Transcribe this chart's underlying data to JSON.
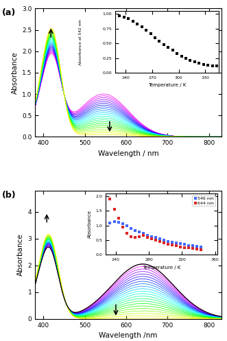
{
  "panel_a": {
    "label": "(a)",
    "ylabel": "Absorbance",
    "xlabel": "Wavelength / nm",
    "xlim": [
      380,
      830
    ],
    "ylim": [
      0.0,
      3.0
    ],
    "yticks": [
      0.0,
      0.5,
      1.0,
      1.5,
      2.0,
      2.5,
      3.0
    ],
    "xticks": [
      400,
      500,
      600,
      700,
      800
    ],
    "n_spectra": 23,
    "inset": {
      "xlim": [
        228,
        345
      ],
      "ylim": [
        0.0,
        1.05
      ],
      "yticks": [
        0.0,
        0.25,
        0.5,
        0.75,
        1.0
      ],
      "xticks": [
        240,
        270,
        300,
        330
      ],
      "xlabel": "Temperature / K",
      "ylabel": "Absorbance at 542 nm",
      "temps": [
        233,
        238,
        243,
        248,
        253,
        258,
        263,
        268,
        273,
        278,
        283,
        288,
        293,
        298,
        303,
        308,
        313,
        318,
        323,
        328,
        333,
        338,
        343
      ],
      "abs_vals": [
        0.97,
        0.95,
        0.92,
        0.88,
        0.83,
        0.78,
        0.72,
        0.66,
        0.6,
        0.54,
        0.48,
        0.43,
        0.38,
        0.33,
        0.28,
        0.24,
        0.21,
        0.18,
        0.16,
        0.14,
        0.13,
        0.12,
        0.12
      ]
    }
  },
  "panel_b": {
    "label": "(b)",
    "ylabel": "Absorbance",
    "xlabel": "Wavelength /nm",
    "xlim": [
      380,
      830
    ],
    "ylim": [
      0.0,
      4.8
    ],
    "yticks": [
      0,
      1,
      2,
      3,
      4
    ],
    "xticks": [
      400,
      500,
      600,
      700,
      800
    ],
    "n_spectra": 23,
    "inset": {
      "xlim": [
        228,
        363
      ],
      "ylim": [
        0.0,
        2.1
      ],
      "yticks": [
        0.0,
        0.5,
        1.0,
        1.5,
        2.0
      ],
      "xticks": [
        240,
        280,
        320,
        360
      ],
      "xlabel": "Temperature / K",
      "ylabel": "Absorbance",
      "temps": [
        233,
        238,
        243,
        248,
        253,
        258,
        263,
        268,
        273,
        278,
        283,
        288,
        293,
        298,
        303,
        308,
        313,
        318,
        323,
        328,
        333,
        338,
        343
      ],
      "abs_546": [
        1.08,
        1.12,
        1.1,
        1.05,
        0.98,
        0.9,
        0.83,
        0.77,
        0.72,
        0.67,
        0.62,
        0.58,
        0.54,
        0.5,
        0.46,
        0.43,
        0.4,
        0.37,
        0.35,
        0.32,
        0.3,
        0.28,
        0.27
      ],
      "abs_644": [
        1.9,
        1.55,
        1.25,
        0.95,
        0.72,
        0.62,
        0.6,
        0.62,
        0.65,
        0.6,
        0.55,
        0.5,
        0.45,
        0.4,
        0.36,
        0.33,
        0.3,
        0.27,
        0.25,
        0.23,
        0.21,
        0.19,
        0.18
      ],
      "color_546": "#4466ff",
      "color_644": "#dd2222"
    }
  }
}
